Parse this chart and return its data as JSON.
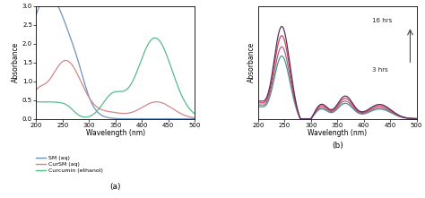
{
  "panel_a": {
    "xlabel": "Wavelength (nm)",
    "ylabel": "Absorbance",
    "label": "(a)",
    "xlim": [
      200,
      500
    ],
    "ylim": [
      0,
      3
    ],
    "yticks": [
      0,
      0.5,
      1.0,
      1.5,
      2.0,
      2.5,
      3.0
    ],
    "xticks": [
      200,
      250,
      300,
      350,
      400,
      450,
      500
    ],
    "legend": [
      "SM (aq)",
      "CurSM (aq)",
      "Curcumin (ethanol)"
    ],
    "colors_a": [
      "#7090c0",
      "#d08888",
      "#55bb88"
    ]
  },
  "panel_b": {
    "xlabel": "Wavelength (nm)",
    "ylabel": "Absorbance",
    "label": "(b)",
    "xlim": [
      200,
      500
    ],
    "xticks": [
      200,
      250,
      300,
      350,
      400,
      450,
      500
    ],
    "annotation_top": "16 hrs",
    "annotation_bottom": "3 hrs",
    "colors_b": [
      "#449988",
      "#aa6688",
      "#cc4455",
      "#553366"
    ]
  },
  "fig_bg": "#ffffff"
}
